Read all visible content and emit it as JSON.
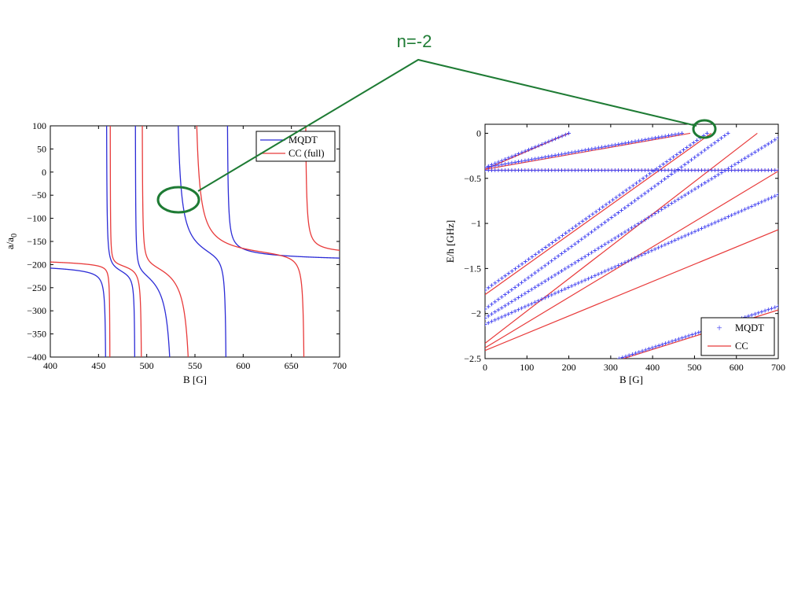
{
  "annotation": {
    "label": "n=-2",
    "color": "#1e7b34"
  },
  "chart_data": [
    {
      "type": "line",
      "xlabel": "B [G]",
      "ylabel": "a/a",
      "ylabel_sub": "0",
      "xlim": [
        400,
        700
      ],
      "ylim": [
        -400,
        100
      ],
      "xticks": [
        400,
        450,
        500,
        550,
        600,
        650,
        700
      ],
      "yticks": [
        100,
        50,
        0,
        -50,
        -100,
        -150,
        -200,
        -250,
        -300,
        -350,
        -400
      ],
      "legend": "top-right",
      "series": [
        {
          "name": "MQDT",
          "color": "#2b2bd6",
          "background": -195,
          "resonances": [
            {
              "x": 458,
              "width": 0.6
            },
            {
              "x": 488,
              "width": 0.4
            },
            {
              "x": 529,
              "width": 5.5
            },
            {
              "x": 583,
              "width": 1.2
            }
          ]
        },
        {
          "name": "CC (full)",
          "color": "#e83a3a",
          "background": -184,
          "resonances": [
            {
              "x": 462,
              "width": 0.25
            },
            {
              "x": 495,
              "width": 0.6
            },
            {
              "x": 548,
              "width": 6.0
            },
            {
              "x": 664,
              "width": 1.4
            }
          ]
        }
      ]
    },
    {
      "type": "line",
      "xlabel": "B [G]",
      "ylabel": "E/h [GHz]",
      "xlim": [
        0,
        700
      ],
      "ylim": [
        -2.5,
        0.1
      ],
      "xticks": [
        0,
        100,
        200,
        300,
        400,
        500,
        600,
        700
      ],
      "yticks": [
        0,
        -0.5,
        -1,
        -1.5,
        -2,
        -2.5
      ],
      "legend": "bottom-right",
      "series": [
        {
          "name": "MQDT",
          "style": "markers",
          "marker": "+",
          "color": "#3a3af0",
          "lines": [
            [
              [
                0,
                -0.38
              ],
              [
                200,
                0.0
              ]
            ],
            [
              [
                0,
                -0.38
              ],
              [
                470,
                0.0
              ]
            ],
            [
              [
                0,
                -0.41
              ],
              [
                700,
                -0.41
              ]
            ],
            [
              [
                0,
                -1.74
              ],
              [
                530,
                0.0
              ]
            ],
            [
              [
                0,
                -1.95
              ],
              [
                580,
                0.0
              ]
            ],
            [
              [
                0,
                -2.05
              ],
              [
                700,
                -0.05
              ]
            ],
            [
              [
                0,
                -2.12
              ],
              [
                700,
                -0.68
              ]
            ],
            [
              [
                320,
                -2.5
              ],
              [
                700,
                -1.92
              ]
            ]
          ]
        },
        {
          "name": "CC",
          "style": "line",
          "color": "#e83a3a",
          "lines": [
            [
              [
                0,
                -0.4
              ],
              [
                200,
                0.0
              ]
            ],
            [
              [
                0,
                -0.4
              ],
              [
                490,
                0.0
              ]
            ],
            [
              [
                0,
                -0.41
              ],
              [
                700,
                -0.41
              ]
            ],
            [
              [
                0,
                -1.79
              ],
              [
                540,
                0.0
              ]
            ],
            [
              [
                0,
                -2.33
              ],
              [
                650,
                0.0
              ]
            ],
            [
              [
                0,
                -2.38
              ],
              [
                700,
                -0.42
              ]
            ],
            [
              [
                0,
                -2.41
              ],
              [
                700,
                -1.07
              ]
            ],
            [
              [
                330,
                -2.5
              ],
              [
                700,
                -1.96
              ]
            ]
          ]
        }
      ]
    }
  ]
}
